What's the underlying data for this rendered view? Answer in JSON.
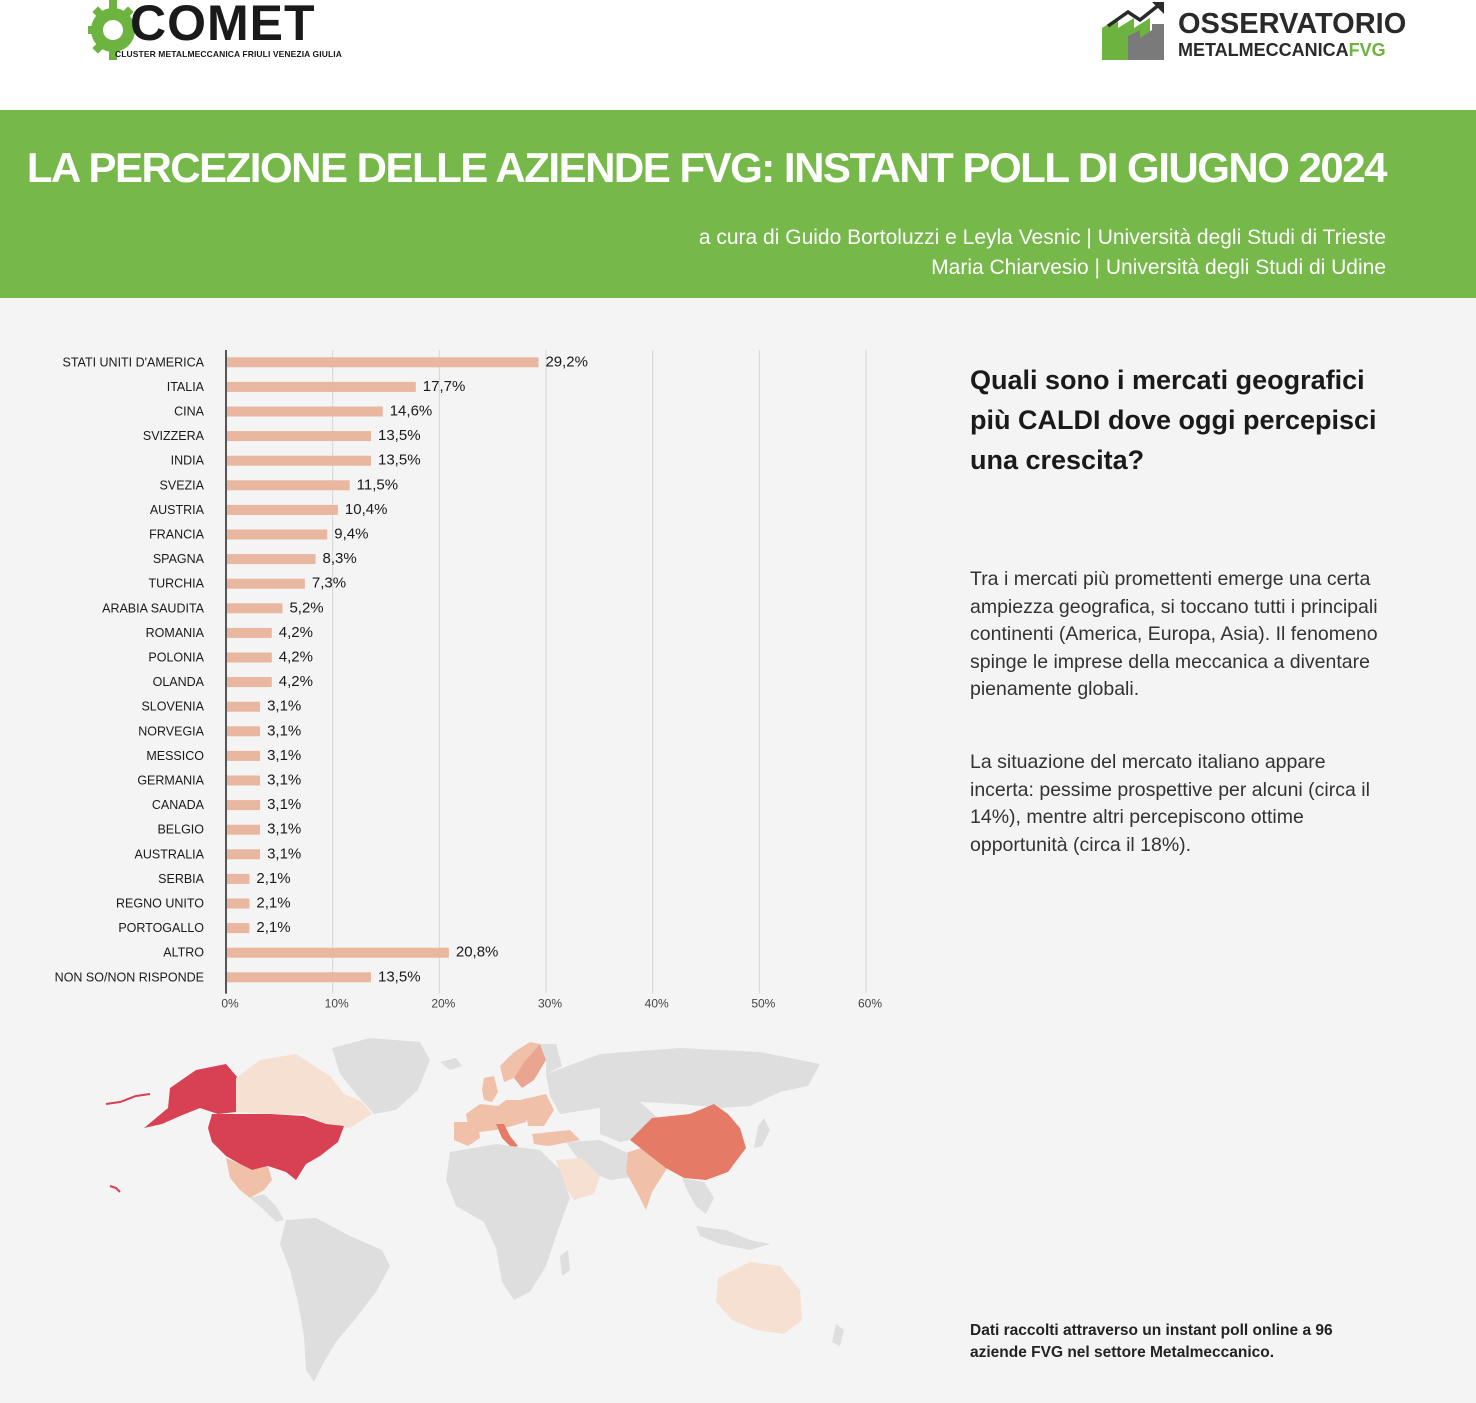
{
  "logos": {
    "comet_name": "COMET",
    "comet_subtitle": "CLUSTER METALMECCANICA FRIULI VENEZIA GIULIA",
    "observatory_line1": "OSSERVATORIO",
    "observatory_line2": "METALMECCANICA",
    "observatory_fvg": "FVG"
  },
  "header": {
    "title": "LA PERCEZIONE DELLE AZIENDE FVG: INSTANT POLL DI GIUGNO 2024",
    "credit_line1": "a cura di Guido Bortoluzzi e Leyla Vesnic | Università degli Studi di Trieste",
    "credit_line2": "Maria Chiarvesio | Università degli Studi di Udine"
  },
  "chart_data": {
    "type": "bar",
    "orientation": "horizontal",
    "categories": [
      "STATI UNITI D'AMERICA",
      "ITALIA",
      "CINA",
      "SVIZZERA",
      "INDIA",
      "SVEZIA",
      "AUSTRIA",
      "FRANCIA",
      "SPAGNA",
      "TURCHIA",
      "ARABIA SAUDITA",
      "ROMANIA",
      "POLONIA",
      "OLANDA",
      "SLOVENIA",
      "NORVEGIA",
      "MESSICO",
      "GERMANIA",
      "CANADA",
      "BELGIO",
      "AUSTRALIA",
      "SERBIA",
      "REGNO UNITO",
      "PORTOGALLO",
      "ALTRO",
      "NON SO/NON RISPONDE"
    ],
    "values": [
      29.2,
      17.7,
      14.6,
      13.5,
      13.5,
      11.5,
      10.4,
      9.4,
      8.3,
      7.3,
      5.2,
      4.2,
      4.2,
      4.2,
      3.1,
      3.1,
      3.1,
      3.1,
      3.1,
      3.1,
      3.1,
      2.1,
      2.1,
      2.1,
      20.8,
      13.5
    ],
    "value_labels": [
      "29,2%",
      "17,7%",
      "14,6%",
      "13,5%",
      "13,5%",
      "11,5%",
      "10,4%",
      "9,4%",
      "8,3%",
      "7,3%",
      "5,2%",
      "4,2%",
      "4,2%",
      "4,2%",
      "3,1%",
      "3,1%",
      "3,1%",
      "3,1%",
      "3,1%",
      "3,1%",
      "3,1%",
      "2,1%",
      "2,1%",
      "2,1%",
      "20,8%",
      "13,5%"
    ],
    "xlim": [
      0,
      60
    ],
    "xticks": [
      0,
      10,
      20,
      30,
      40,
      50,
      60
    ],
    "xtick_labels": [
      "0%",
      "10%",
      "20%",
      "30%",
      "40%",
      "50%",
      "60%"
    ],
    "grid": true,
    "bar_color": "#e9b6a0"
  },
  "side": {
    "question": "Quali sono i mercati geografici più CALDI dove oggi percepisci una crescita?",
    "paragraph1": "Tra i mercati più promettenti emerge una certa ampiezza geografica, si toccano tutti i principali continenti (America, Europa, Asia). Il fenomeno spinge le imprese della meccanica a diventare pienamente globali.",
    "paragraph2": "La situazione del mercato italiano appare incerta: pessime prospettive per alcuni (circa il 14%), mentre altri percepiscono ottime opportunità (circa il 18%).",
    "footnote": "Dati raccolti attraverso un instant poll online a 96 aziende FVG nel settore Metalmeccanico."
  },
  "map": {
    "colors": {
      "high": "#d84053",
      "medium": "#e57a66",
      "low": "#f1c0a8",
      "lowest": "#f6e0d2",
      "none": "#dedede"
    }
  }
}
